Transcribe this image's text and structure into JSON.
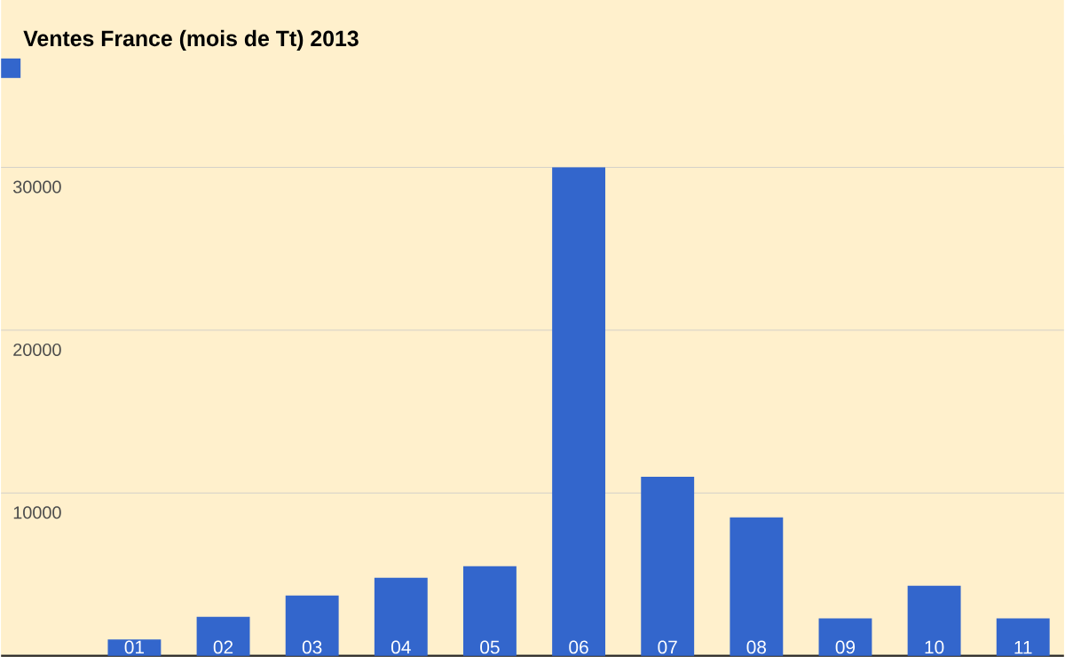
{
  "chart_data": {
    "type": "bar",
    "title": "Ventes France (mois de Tt) 2013",
    "categories": [
      "01",
      "02",
      "03",
      "04",
      "05",
      "06",
      "07",
      "08",
      "09",
      "10",
      "11"
    ],
    "values": [
      1000,
      2400,
      3700,
      4800,
      5500,
      30000,
      11000,
      8500,
      2300,
      4300,
      2300
    ],
    "color": "#3366cc",
    "ylim": [
      0,
      32000
    ],
    "yticks": [
      10000,
      20000,
      30000
    ],
    "grid": "y"
  }
}
